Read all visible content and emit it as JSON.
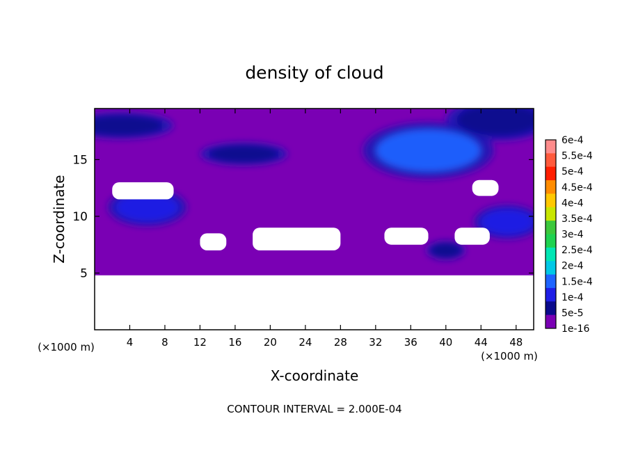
{
  "chart_data": {
    "type": "heatmap",
    "title": "density of cloud",
    "xlabel": "X-coordinate",
    "ylabel": "Z-coordinate",
    "xlim": [
      0,
      50
    ],
    "ylim": [
      0,
      19.5
    ],
    "x_ticks": [
      4,
      8,
      12,
      16,
      20,
      24,
      28,
      32,
      36,
      40,
      44,
      48
    ],
    "y_ticks": [
      5,
      10,
      15
    ],
    "x_unit_left": "(×1000 m)",
    "x_unit_right": "(×1000 m)",
    "footer": "CONTOUR INTERVAL = 2.000E-04",
    "colorbar": {
      "labels": [
        "6e-4",
        "5.5e-4",
        "5e-4",
        "4.5e-4",
        "4e-4",
        "3.5e-4",
        "3e-4",
        "2.5e-4",
        "2e-4",
        "1.5e-4",
        "1e-4",
        "5e-5",
        "1e-16"
      ],
      "colors": [
        "#ff8c8c",
        "#ff5a3c",
        "#ff1e00",
        "#ff8c00",
        "#ffc800",
        "#c8e600",
        "#3cc83c",
        "#1ed250",
        "#00e6b4",
        "#00c8e6",
        "#1e64ff",
        "#1e1ee6",
        "#0a0a8c",
        "#7a00b4"
      ]
    },
    "cloud_base_z": 4.8,
    "cloud_top_z": 19.5,
    "dense_regions": [
      {
        "x": 6,
        "z": 10.8,
        "level": "1e-4"
      },
      {
        "x": 3,
        "z": 18,
        "level": "5e-5"
      },
      {
        "x": 17,
        "z": 15.5,
        "level": "5e-5"
      },
      {
        "x": 38,
        "z": 15.8,
        "level": "1.5e-4"
      },
      {
        "x": 46,
        "z": 18.5,
        "level": "5e-5"
      },
      {
        "x": 47,
        "z": 9.5,
        "level": "1e-4"
      },
      {
        "x": 40,
        "z": 7,
        "level": "5e-5"
      }
    ],
    "clear_regions": [
      {
        "x": [
          2,
          9
        ],
        "z": [
          11.5,
          13
        ]
      },
      {
        "x": [
          12,
          15
        ],
        "z": [
          7,
          8.5
        ]
      },
      {
        "x": [
          18,
          28
        ],
        "z": [
          7,
          9
        ]
      },
      {
        "x": [
          33,
          38
        ],
        "z": [
          7.5,
          9
        ]
      },
      {
        "x": [
          41,
          45
        ],
        "z": [
          7.5,
          9
        ]
      },
      {
        "x": [
          43,
          46
        ],
        "z": [
          11.8,
          13.2
        ]
      }
    ]
  }
}
